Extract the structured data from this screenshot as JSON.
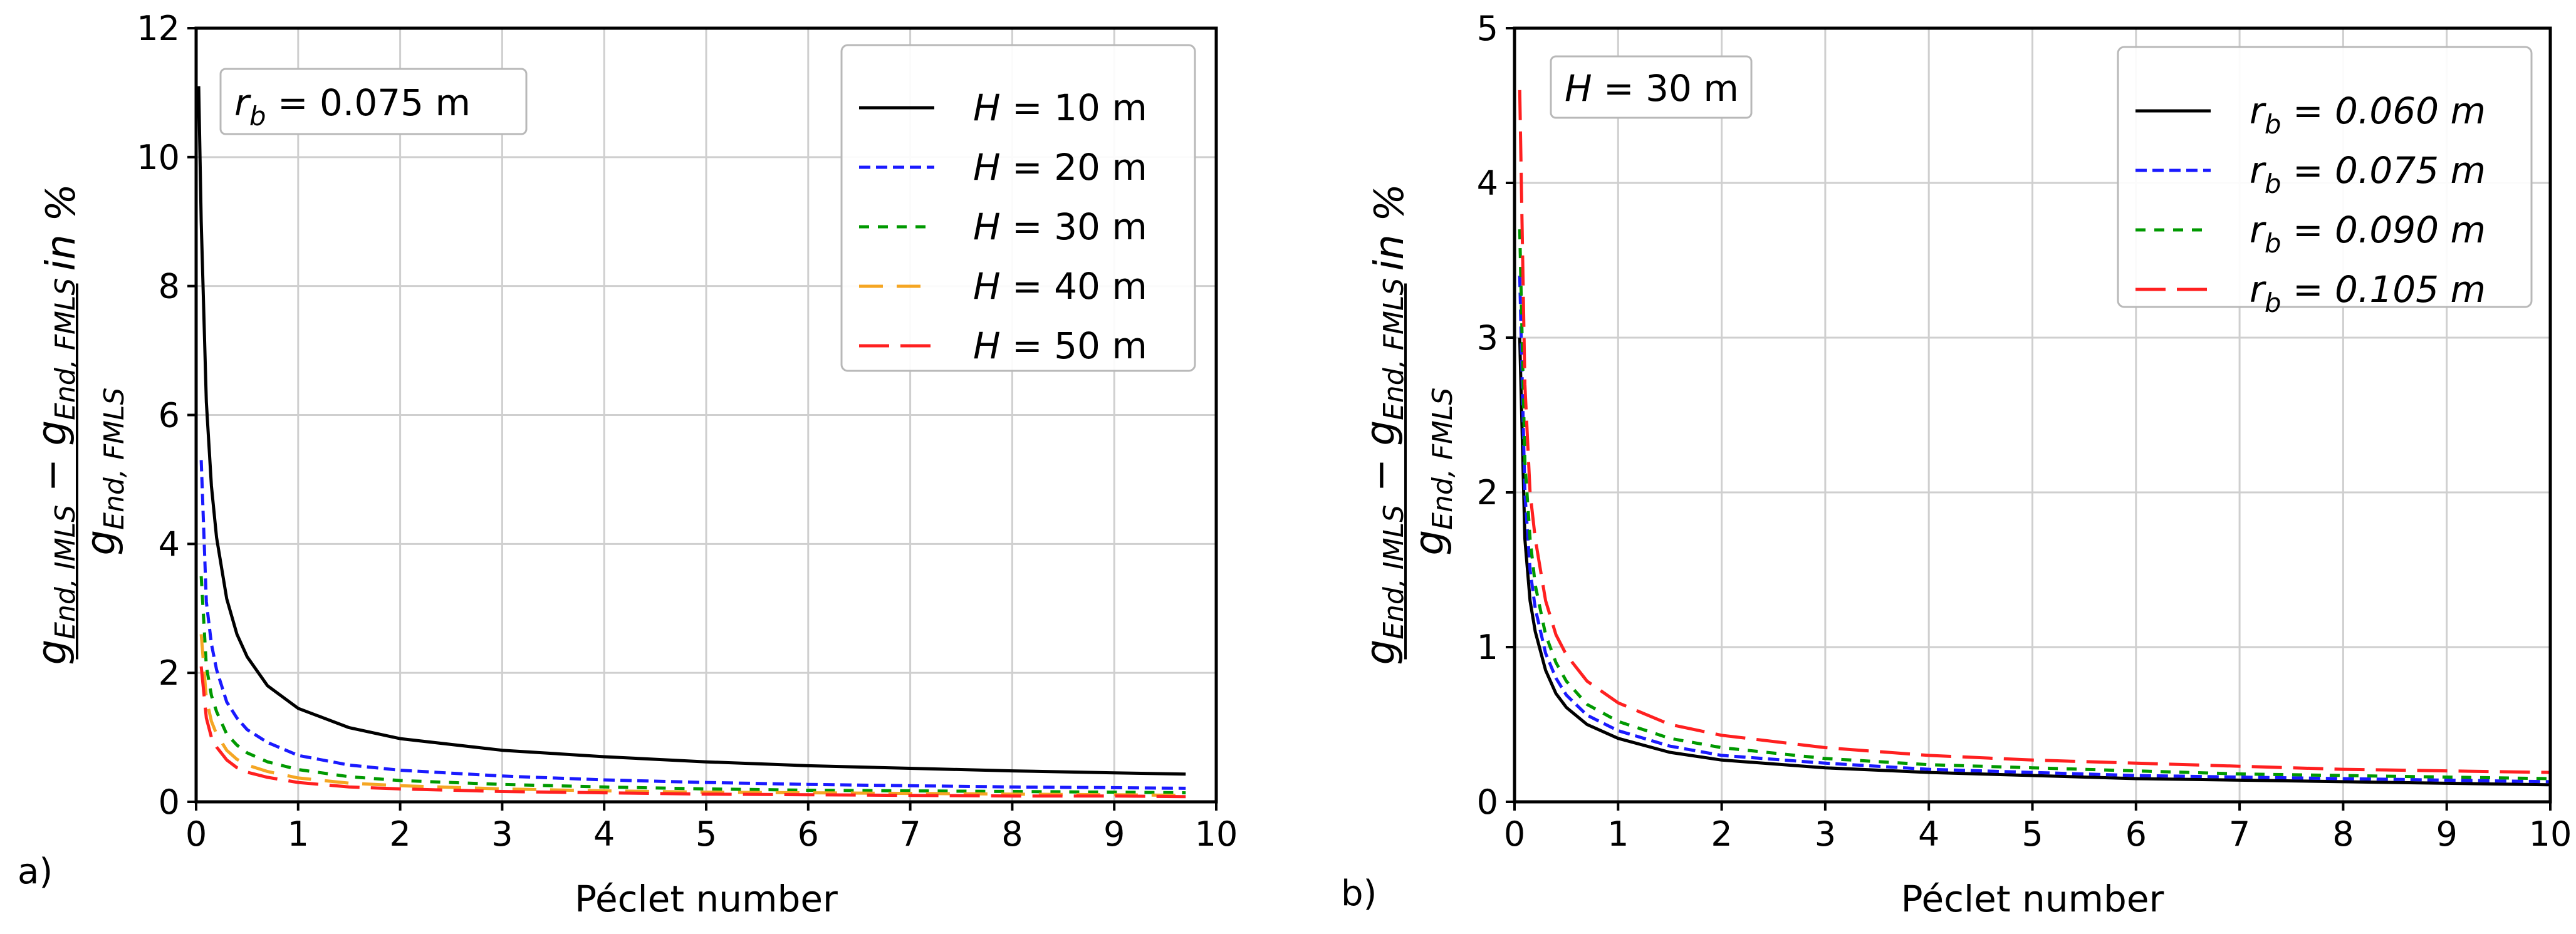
{
  "figure_labels": {
    "a": "a)",
    "b": "b)"
  },
  "chart_data": [
    {
      "type": "line",
      "panel": "a)",
      "xlabel": "Péclet number",
      "ylabel": "(g_End,IMLS − g_End,FMLS) / g_End,FMLS in %",
      "ylabel_parts": {
        "num_g1": "g",
        "num_sub1": "End, IMLS",
        "minus": " − ",
        "num_g2": "g",
        "num_sub2": "End, FMLS",
        "den_g": "g",
        "den_sub": "End, FMLS",
        "unit": " in %"
      },
      "xlim": [
        0,
        10
      ],
      "ylim": [
        0,
        12
      ],
      "xticks": [
        0,
        1,
        2,
        3,
        4,
        5,
        6,
        7,
        8,
        9,
        10
      ],
      "yticks": [
        0,
        2,
        4,
        6,
        8,
        10,
        12
      ],
      "grid": true,
      "annotation": {
        "var": "r",
        "sub": "b",
        "text": " = 0.075 m"
      },
      "legend_position": "top-right",
      "series": [
        {
          "name": "H = 10 m",
          "label_var": "H",
          "label_rest": " = 10 m",
          "color": "#000000",
          "dash": "solid",
          "x": [
            0.025,
            0.05,
            0.1,
            0.15,
            0.2,
            0.3,
            0.4,
            0.5,
            0.7,
            1.0,
            1.5,
            2.0,
            3.0,
            4.0,
            5.0,
            6.0,
            7.0,
            8.0,
            9.0,
            9.7
          ],
          "y": [
            11.1,
            9.0,
            6.2,
            4.9,
            4.1,
            3.15,
            2.6,
            2.25,
            1.8,
            1.45,
            1.15,
            0.98,
            0.8,
            0.7,
            0.62,
            0.56,
            0.52,
            0.48,
            0.45,
            0.43
          ]
        },
        {
          "name": "H = 20 m",
          "label_var": "H",
          "label_rest": " = 20 m",
          "color": "#1a1aff",
          "dash": "dashed",
          "x": [
            0.05,
            0.1,
            0.15,
            0.2,
            0.3,
            0.4,
            0.5,
            0.7,
            1.0,
            1.5,
            2.0,
            3.0,
            4.0,
            5.0,
            6.0,
            7.0,
            8.0,
            9.0,
            9.7
          ],
          "y": [
            5.3,
            3.1,
            2.45,
            2.05,
            1.55,
            1.3,
            1.12,
            0.92,
            0.72,
            0.57,
            0.49,
            0.4,
            0.34,
            0.3,
            0.27,
            0.25,
            0.23,
            0.22,
            0.21
          ]
        },
        {
          "name": "H = 30 m",
          "label_var": "H",
          "label_rest": " = 30 m",
          "color": "#009900",
          "dash": "dotted-dash",
          "x": [
            0.05,
            0.1,
            0.15,
            0.2,
            0.3,
            0.4,
            0.5,
            0.7,
            1.0,
            1.5,
            2.0,
            3.0,
            4.0,
            5.0,
            6.0,
            7.0,
            8.0,
            9.0,
            9.7
          ],
          "y": [
            3.5,
            2.1,
            1.65,
            1.4,
            1.05,
            0.88,
            0.76,
            0.62,
            0.5,
            0.39,
            0.33,
            0.27,
            0.23,
            0.2,
            0.18,
            0.17,
            0.16,
            0.15,
            0.14
          ]
        },
        {
          "name": "H = 40 m",
          "label_var": "H",
          "label_rest": " = 40 m",
          "color": "#f5a623",
          "dash": "long-dash",
          "x": [
            0.05,
            0.1,
            0.15,
            0.2,
            0.3,
            0.4,
            0.5,
            0.7,
            1.0,
            1.5,
            2.0,
            3.0,
            4.0,
            5.0,
            6.0,
            7.0,
            8.0,
            9.0,
            9.7
          ],
          "y": [
            2.6,
            1.6,
            1.25,
            1.05,
            0.8,
            0.66,
            0.57,
            0.47,
            0.37,
            0.29,
            0.25,
            0.2,
            0.17,
            0.15,
            0.14,
            0.13,
            0.12,
            0.11,
            0.1
          ]
        },
        {
          "name": "H = 50 m",
          "label_var": "H",
          "label_rest": " = 50 m",
          "color": "#ff2020",
          "dash": "dash-gap",
          "x": [
            0.05,
            0.1,
            0.15,
            0.2,
            0.3,
            0.4,
            0.5,
            0.7,
            1.0,
            1.5,
            2.0,
            3.0,
            4.0,
            5.0,
            6.0,
            7.0,
            8.0,
            9.0,
            9.7
          ],
          "y": [
            2.1,
            1.3,
            1.0,
            0.85,
            0.65,
            0.53,
            0.46,
            0.38,
            0.3,
            0.23,
            0.2,
            0.16,
            0.14,
            0.12,
            0.11,
            0.1,
            0.09,
            0.09,
            0.08
          ]
        }
      ]
    },
    {
      "type": "line",
      "panel": "b)",
      "xlabel": "Péclet number",
      "ylabel": "(g_End,IMLS − g_End,FMLS) / g_End,FMLS in %",
      "ylabel_parts": {
        "num_g1": "g",
        "num_sub1": "End, IMLS",
        "minus": " − ",
        "num_g2": "g",
        "num_sub2": "End, FMLS",
        "den_g": "g",
        "den_sub": "End, FMLS",
        "unit": " in %"
      },
      "xlim": [
        0,
        10
      ],
      "ylim": [
        0,
        5
      ],
      "xticks": [
        0,
        1,
        2,
        3,
        4,
        5,
        6,
        7,
        8,
        9,
        10
      ],
      "yticks": [
        0,
        1,
        2,
        3,
        4,
        5
      ],
      "grid": true,
      "annotation": {
        "var": "H",
        "sub": "",
        "text": " = 30 m"
      },
      "legend_position": "top-right",
      "series": [
        {
          "name": "r_b = 0.060 m",
          "label_var": "r",
          "label_sub": "b",
          "label_rest": " = 0.060 m",
          "color": "#000000",
          "dash": "solid",
          "x": [
            0.05,
            0.1,
            0.15,
            0.2,
            0.3,
            0.4,
            0.5,
            0.7,
            1.0,
            1.5,
            2.0,
            3.0,
            4.0,
            5.0,
            6.0,
            7.0,
            8.0,
            9.0,
            10.0
          ],
          "y": [
            3.0,
            1.7,
            1.3,
            1.1,
            0.85,
            0.7,
            0.61,
            0.5,
            0.41,
            0.32,
            0.27,
            0.22,
            0.19,
            0.17,
            0.15,
            0.14,
            0.13,
            0.12,
            0.11
          ]
        },
        {
          "name": "r_b = 0.075 m",
          "label_var": "r",
          "label_sub": "b",
          "label_rest": " = 0.075 m",
          "color": "#1a1aff",
          "dash": "dashed",
          "x": [
            0.05,
            0.1,
            0.15,
            0.2,
            0.3,
            0.4,
            0.5,
            0.7,
            1.0,
            1.5,
            2.0,
            3.0,
            4.0,
            5.0,
            6.0,
            7.0,
            8.0,
            9.0,
            10.0
          ],
          "y": [
            3.4,
            2.0,
            1.5,
            1.25,
            0.96,
            0.8,
            0.69,
            0.56,
            0.46,
            0.36,
            0.3,
            0.25,
            0.21,
            0.19,
            0.17,
            0.16,
            0.15,
            0.14,
            0.13
          ]
        },
        {
          "name": "r_b = 0.090 m",
          "label_var": "r",
          "label_sub": "b",
          "label_rest": " = 0.090 m",
          "color": "#009900",
          "dash": "dotted-dash",
          "x": [
            0.05,
            0.1,
            0.15,
            0.2,
            0.3,
            0.4,
            0.5,
            0.7,
            1.0,
            1.5,
            2.0,
            3.0,
            4.0,
            5.0,
            6.0,
            7.0,
            8.0,
            9.0,
            10.0
          ],
          "y": [
            3.7,
            2.2,
            1.7,
            1.4,
            1.08,
            0.9,
            0.78,
            0.63,
            0.52,
            0.41,
            0.35,
            0.28,
            0.24,
            0.22,
            0.2,
            0.18,
            0.17,
            0.16,
            0.15
          ]
        },
        {
          "name": "r_b = 0.105 m",
          "label_var": "r",
          "label_sub": "b",
          "label_rest": " = 0.105 m",
          "color": "#ff2020",
          "dash": "dash-gap",
          "x": [
            0.05,
            0.1,
            0.15,
            0.2,
            0.3,
            0.4,
            0.5,
            0.7,
            1.0,
            1.5,
            2.0,
            3.0,
            4.0,
            5.0,
            6.0,
            7.0,
            8.0,
            9.0,
            10.0
          ],
          "y": [
            4.6,
            2.7,
            2.0,
            1.7,
            1.3,
            1.08,
            0.95,
            0.78,
            0.64,
            0.5,
            0.43,
            0.35,
            0.3,
            0.27,
            0.25,
            0.23,
            0.21,
            0.2,
            0.19
          ]
        }
      ]
    }
  ]
}
